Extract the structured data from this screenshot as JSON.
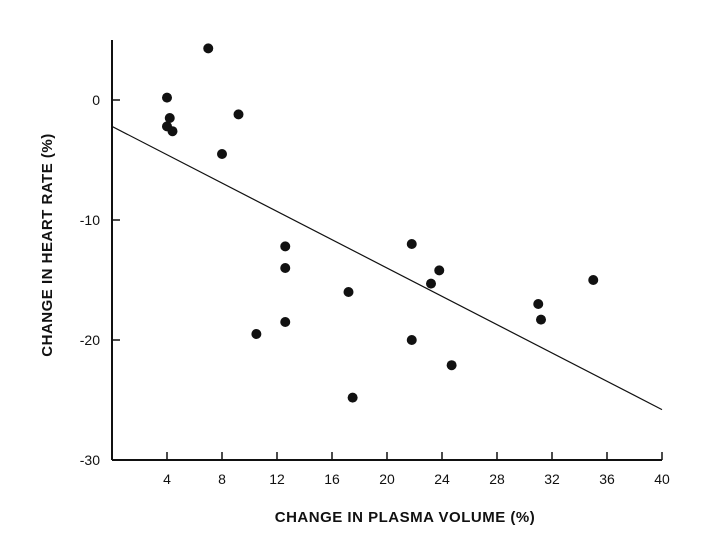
{
  "chart_data": {
    "type": "scatter",
    "title": "",
    "xlabel": "CHANGE IN PLASMA VOLUME (%)",
    "ylabel": "CHANGE IN HEART RATE (%)",
    "xlim": [
      0,
      40
    ],
    "ylim": [
      -30,
      5
    ],
    "x_ticks": [
      4,
      8,
      12,
      16,
      20,
      24,
      28,
      32,
      36,
      40
    ],
    "y_ticks": [
      0,
      -10,
      -20,
      -30
    ],
    "grid": false,
    "legend": "none",
    "points": [
      {
        "x": 4.0,
        "y": 0.2
      },
      {
        "x": 4.0,
        "y": -2.2
      },
      {
        "x": 4.2,
        "y": -1.5
      },
      {
        "x": 4.4,
        "y": -2.6
      },
      {
        "x": 7.0,
        "y": 4.3
      },
      {
        "x": 8.0,
        "y": -4.5
      },
      {
        "x": 9.2,
        "y": -1.2
      },
      {
        "x": 10.5,
        "y": -19.5
      },
      {
        "x": 12.6,
        "y": -12.2
      },
      {
        "x": 12.6,
        "y": -14.0
      },
      {
        "x": 12.6,
        "y": -18.5
      },
      {
        "x": 17.2,
        "y": -16.0
      },
      {
        "x": 17.5,
        "y": -24.8
      },
      {
        "x": 21.8,
        "y": -12.0
      },
      {
        "x": 21.8,
        "y": -20.0
      },
      {
        "x": 23.2,
        "y": -15.3
      },
      {
        "x": 23.8,
        "y": -14.2
      },
      {
        "x": 24.7,
        "y": -22.1
      },
      {
        "x": 31.0,
        "y": -17.0
      },
      {
        "x": 31.2,
        "y": -18.3
      },
      {
        "x": 35.0,
        "y": -15.0
      }
    ],
    "fit_line": {
      "x": [
        0,
        40
      ],
      "y": [
        -2.2,
        -25.8
      ]
    }
  }
}
